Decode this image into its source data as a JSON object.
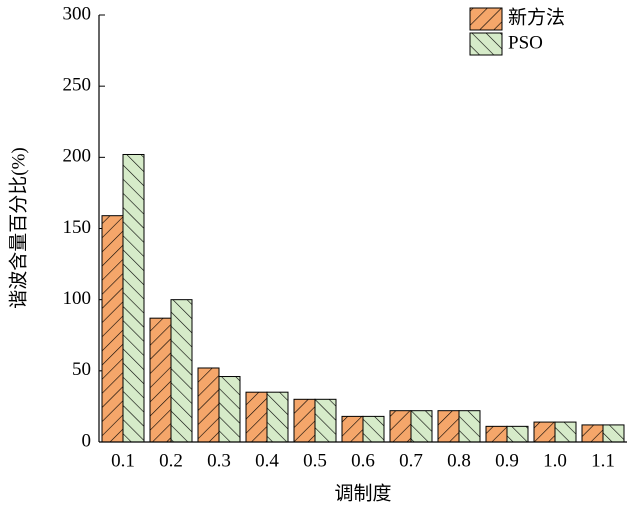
{
  "chart_data": {
    "type": "bar",
    "y_label": "谐波含量百分比(%)",
    "x_label": "调制度",
    "categories": [
      "0.1",
      "0.2",
      "0.3",
      "0.4",
      "0.5",
      "0.6",
      "0.7",
      "0.8",
      "0.9",
      "1.0",
      "1.1"
    ],
    "series": [
      {
        "name": "新方法",
        "color": "#f5a66a",
        "values": [
          159,
          87,
          52,
          35,
          30,
          18,
          22,
          22,
          11,
          14,
          12
        ]
      },
      {
        "name": "PSO",
        "color": "#d6ebc9",
        "values": [
          202,
          100,
          46,
          35,
          30,
          18,
          22,
          22,
          11,
          14,
          12
        ]
      }
    ],
    "ylim": [
      0,
      300
    ],
    "yticks": [
      0,
      50,
      100,
      150,
      200,
      250,
      300
    ],
    "legend": "upper right"
  }
}
